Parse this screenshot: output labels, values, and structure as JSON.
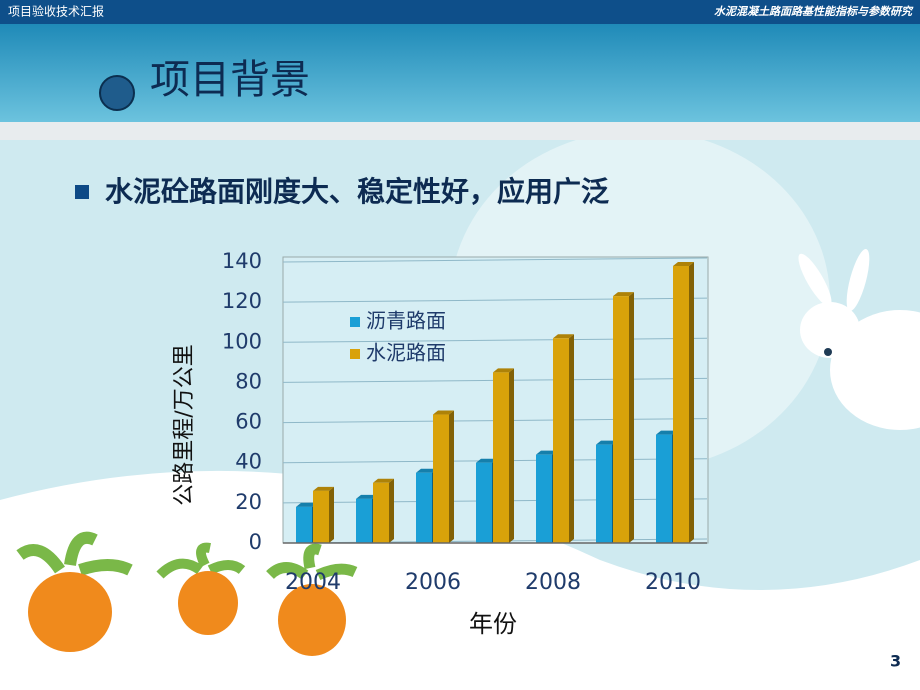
{
  "header": {
    "left": "项目验收技术汇报",
    "right": "水泥混凝土路面路基性能指标与参数研究"
  },
  "title": "项目背景",
  "bullet": "水泥砼路面刚度大、稳定性好，应用广泛",
  "page_number": "3",
  "chart_data": {
    "type": "bar",
    "categories": [
      "2004",
      null,
      "2006",
      null,
      "2008",
      null,
      "2010"
    ],
    "series": [
      {
        "name": "沥青路面",
        "color": "#1a9fd6",
        "values": [
          18,
          22,
          35,
          40,
          44,
          49,
          54
        ]
      },
      {
        "name": "水泥路面",
        "color": "#d9a20a",
        "values": [
          26,
          30,
          64,
          85,
          102,
          123,
          138
        ]
      }
    ],
    "ylim": [
      0,
      140
    ],
    "yticks": [
      0,
      20,
      40,
      60,
      80,
      100,
      120,
      140
    ],
    "grid": true,
    "ylabel": "公路里程/万公里",
    "xlabel": "年份"
  }
}
